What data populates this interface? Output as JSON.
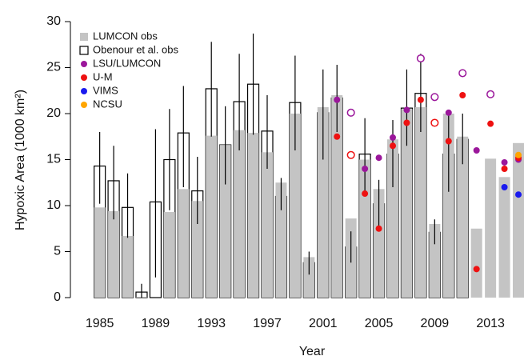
{
  "chart_data": {
    "type": "bar",
    "xlabel": "Year",
    "ylabel": "Hypoxic Area (1000 km²)",
    "x": [
      1985,
      1986,
      1987,
      1988,
      1989,
      1990,
      1991,
      1992,
      1993,
      1994,
      1995,
      1996,
      1997,
      1998,
      1999,
      2000,
      2001,
      2002,
      2003,
      2004,
      2005,
      2006,
      2007,
      2008,
      2009,
      2010,
      2011,
      2012,
      2013,
      2014,
      2015
    ],
    "xlim": [
      1982.9,
      2015.4
    ],
    "xticks": [
      1985,
      1989,
      1993,
      1997,
      2001,
      2005,
      2009,
      2013
    ],
    "ylim": [
      0,
      30
    ],
    "yticks": [
      0,
      5,
      10,
      15,
      20,
      25,
      30
    ],
    "legend": "top-left",
    "series": [
      {
        "name": "LUMCON obs",
        "type": "bar",
        "color": "#c4c4c4",
        "values": [
          9.8,
          9.4,
          6.7,
          0.04,
          null,
          9.3,
          11.8,
          10.5,
          17.6,
          16.6,
          18.2,
          17.9,
          15.8,
          12.5,
          20.0,
          4.4,
          20.7,
          22.0,
          8.6,
          15.0,
          11.8,
          17.2,
          20.5,
          20.7,
          8.0,
          20.0,
          17.5,
          7.5,
          15.1,
          13.1,
          16.8
        ]
      },
      {
        "name": "Obenour et al. obs",
        "type": "bar",
        "color": "#ffffff",
        "edge": "#000000",
        "values": [
          14.3,
          12.7,
          9.8,
          0.6,
          10.4,
          15.0,
          17.9,
          11.6,
          22.7,
          16.6,
          21.3,
          23.2,
          18.1,
          11.0,
          21.2,
          3.8,
          20.1,
          21.7,
          5.5,
          15.6,
          10.2,
          15.6,
          20.6,
          22.2,
          7.1,
          15.6,
          17.2,
          null,
          null,
          null,
          null
        ],
        "low": [
          10.2,
          8.5,
          6.5,
          0,
          2.2,
          9.5,
          12.0,
          8.0,
          17.5,
          12.3,
          16.0,
          17.7,
          14.0,
          9.5,
          16.0,
          2.5,
          15.0,
          18.0,
          3.8,
          11.0,
          7.3,
          12.0,
          16.5,
          18.0,
          5.8,
          11.5,
          14.5,
          null,
          null,
          null,
          null
        ],
        "high": [
          18.0,
          16.5,
          13.5,
          1.5,
          18.3,
          20.5,
          23.0,
          15.3,
          27.8,
          20.8,
          26.5,
          28.7,
          22.0,
          13.0,
          26.3,
          5.0,
          24.8,
          25.3,
          7.2,
          19.5,
          12.8,
          19.3,
          24.8,
          26.5,
          8.5,
          19.8,
          20.0,
          null,
          null,
          null,
          null
        ]
      },
      {
        "name": "LSU/LUMCON",
        "type": "scatter",
        "color": "#9b179b",
        "x": [
          2002,
          2003,
          2004,
          2005,
          2006,
          2007,
          2008,
          2009,
          2010,
          2011,
          2012,
          2013,
          2014,
          2015
        ],
        "values": [
          21.5,
          20.1,
          14.0,
          15.2,
          17.4,
          20.4,
          26.0,
          21.8,
          20.1,
          24.4,
          16.0,
          22.1,
          14.7,
          15.0
        ],
        "open": [
          false,
          true,
          false,
          false,
          false,
          false,
          true,
          true,
          false,
          true,
          false,
          true,
          false,
          false
        ]
      },
      {
        "name": "U-M",
        "type": "scatter",
        "color": "#ee1111",
        "x": [
          2002,
          2003,
          2004,
          2005,
          2006,
          2007,
          2008,
          2009,
          2010,
          2011,
          2012,
          2013,
          2014,
          2015
        ],
        "values": [
          17.5,
          15.5,
          11.3,
          7.5,
          16.5,
          19.0,
          21.5,
          19.0,
          17.0,
          22.0,
          3.1,
          18.9,
          14.0,
          15.2
        ],
        "open": [
          false,
          true,
          false,
          false,
          false,
          false,
          false,
          true,
          false,
          false,
          false,
          false,
          false,
          false
        ]
      },
      {
        "name": "VIMS",
        "type": "scatter",
        "color": "#1a1aee",
        "x": [
          2014,
          2015
        ],
        "values": [
          12.0,
          11.2
        ],
        "open": [
          false,
          false
        ]
      },
      {
        "name": "NCSU",
        "type": "scatter",
        "color": "#ffa500",
        "x": [
          2015
        ],
        "values": [
          15.5
        ],
        "open": [
          false
        ]
      }
    ]
  }
}
